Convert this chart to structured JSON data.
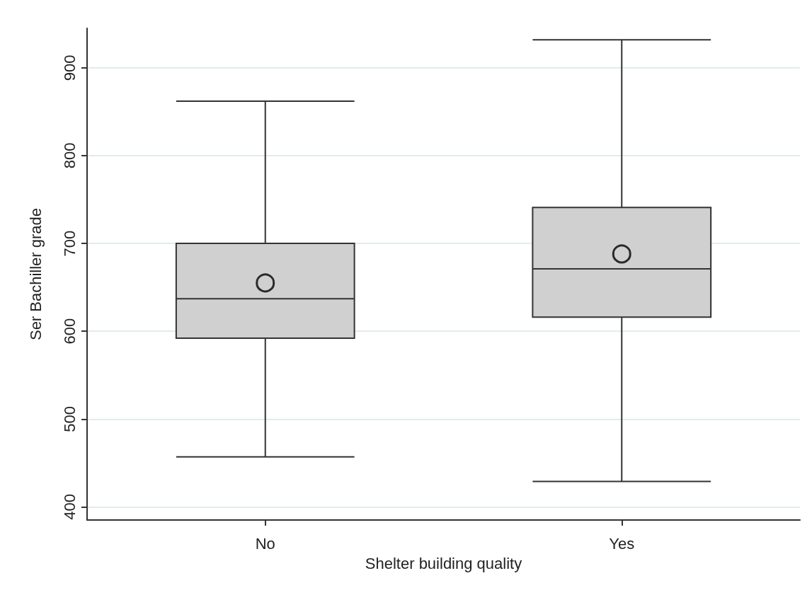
{
  "chart_data": {
    "type": "box",
    "xlabel": "Shelter building quality",
    "ylabel": "Ser Bachiller grade",
    "categories": [
      "No",
      "Yes"
    ],
    "boxes": [
      {
        "low": 457,
        "q1": 592,
        "median": 637,
        "q3": 700,
        "high": 862,
        "mean": 655
      },
      {
        "low": 429,
        "q1": 616,
        "median": 671,
        "q3": 741,
        "high": 932,
        "mean": 688
      }
    ],
    "color": "#d0d0d0",
    "ylim": [
      385,
      945
    ],
    "yticks": [
      400,
      500,
      600,
      700,
      800,
      900
    ],
    "grid": "y",
    "marker": "circle"
  }
}
